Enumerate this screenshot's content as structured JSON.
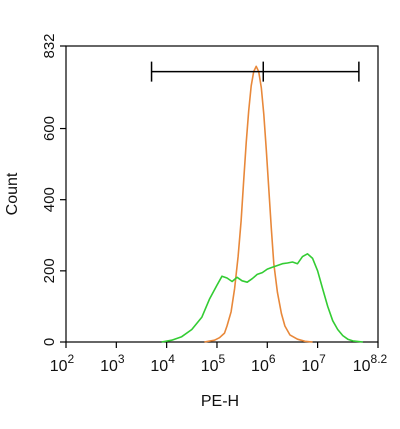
{
  "chart_data": {
    "type": "line",
    "title": "",
    "xlabel": "PE-H",
    "ylabel": "Count",
    "x_scale": "log10",
    "xlim_exponent": [
      2,
      8.2
    ],
    "ylim": [
      0,
      832
    ],
    "x_ticks": [
      {
        "base": "10",
        "exp": "2",
        "value_exponent": 2
      },
      {
        "base": "10",
        "exp": "3",
        "value_exponent": 3
      },
      {
        "base": "10",
        "exp": "4",
        "value_exponent": 4
      },
      {
        "base": "10",
        "exp": "5",
        "value_exponent": 5
      },
      {
        "base": "10",
        "exp": "6",
        "value_exponent": 6
      },
      {
        "base": "10",
        "exp": "7",
        "value_exponent": 7
      },
      {
        "base": "10",
        "exp": "8.2",
        "value_exponent": 8.2
      }
    ],
    "y_ticks": [
      "0",
      "200",
      "400",
      "600",
      "832"
    ],
    "y_tick_values": [
      0,
      200,
      400,
      600,
      832
    ],
    "grid": false,
    "legend": "none",
    "series": [
      {
        "color": "#e8883a",
        "x_exponent": [
          4.75,
          4.95,
          5.05,
          5.15,
          5.2,
          5.28,
          5.35,
          5.42,
          5.48,
          5.53,
          5.58,
          5.63,
          5.68,
          5.73,
          5.78,
          5.83,
          5.88,
          5.93,
          5.98,
          6.03,
          6.08,
          6.13,
          6.2,
          6.28,
          6.35,
          6.45,
          6.6,
          6.75,
          6.9
        ],
        "y": [
          0,
          5,
          12,
          25,
          45,
          85,
          150,
          240,
          340,
          450,
          560,
          650,
          720,
          760,
          775,
          760,
          715,
          640,
          540,
          430,
          320,
          220,
          140,
          80,
          45,
          20,
          8,
          2,
          0
        ]
      },
      {
        "color": "#33cc33",
        "x_exponent": [
          3.9,
          4.1,
          4.3,
          4.5,
          4.7,
          4.85,
          5.0,
          5.1,
          5.2,
          5.3,
          5.4,
          5.5,
          5.6,
          5.7,
          5.8,
          5.9,
          6.0,
          6.1,
          6.2,
          6.3,
          6.4,
          6.5,
          6.6,
          6.7,
          6.8,
          6.9,
          7.0,
          7.1,
          7.2,
          7.3,
          7.4,
          7.5,
          7.6,
          7.7,
          7.9
        ],
        "y": [
          0,
          5,
          15,
          35,
          70,
          120,
          160,
          185,
          180,
          170,
          182,
          172,
          168,
          178,
          190,
          195,
          205,
          210,
          215,
          220,
          222,
          225,
          220,
          240,
          248,
          235,
          200,
          150,
          100,
          60,
          35,
          18,
          8,
          3,
          0
        ]
      }
    ],
    "gate": {
      "x_start_exponent": 3.7,
      "x_mid_exponent": 5.92,
      "x_end_exponent": 7.82,
      "y": 760,
      "color": "#000000"
    }
  }
}
